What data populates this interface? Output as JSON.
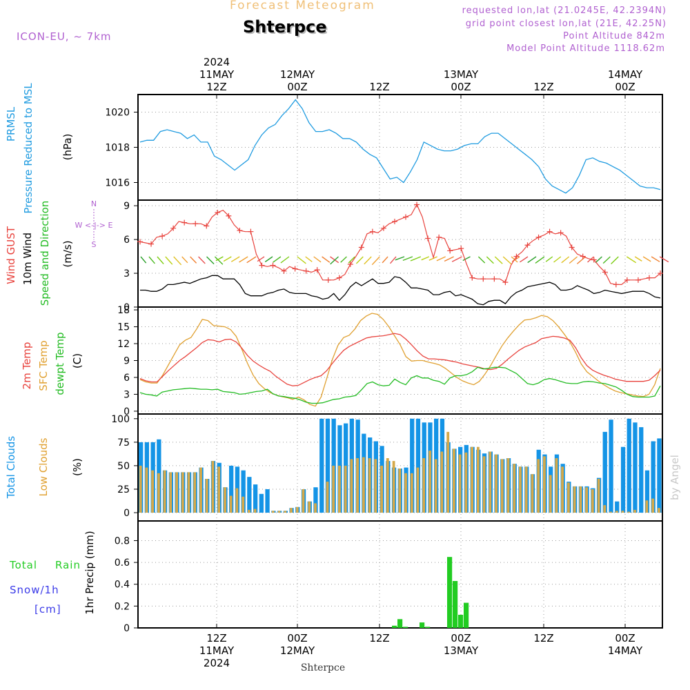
{
  "header": {
    "title": "Forecast Meteogram",
    "location": "Shterpce",
    "model": "ICON-EU, ~ 7km",
    "requested": "requested lon,lat (21.0245E, 42.2394N)",
    "grid_point": "grid point closest lon,lat (21E, 42.25N)",
    "point_altitude": "Point Altitude 842m",
    "model_altitude": "Model Point Altitude 1118.62m",
    "footer_location": "Shterpce",
    "credit": "by Angel"
  },
  "colors": {
    "pressure": "#1f9be0",
    "gust": "#e8423c",
    "wind": "#000000",
    "t2m": "#e8423c",
    "sfc": "#e0a030",
    "dewpt": "#22bb22",
    "total_cloud": "#1494e6",
    "low_cloud": "#d4a94a",
    "rain": "#22cc22",
    "snow": "#3a3ae8",
    "header_purple": "#b060d0",
    "title_orange": "#f0c078"
  },
  "chart_data": [
    {
      "type": "line",
      "panel": "pressure",
      "ylabels": [
        "PRMSL",
        "Pressure Reduced to MSL",
        "(hPa)"
      ],
      "ylim": [
        1015,
        1021
      ],
      "yticks": [
        1016,
        1018,
        1020
      ],
      "grid": true,
      "series": [
        {
          "name": "PRMSL",
          "values": [
            1018.3,
            1018.4,
            1018.4,
            1018.9,
            1019.0,
            1018.9,
            1018.8,
            1018.5,
            1018.7,
            1018.3,
            1018.3,
            1017.5,
            1017.3,
            1017.0,
            1016.7,
            1017.0,
            1017.3,
            1018.1,
            1018.7,
            1019.1,
            1019.3,
            1019.8,
            1020.2,
            1020.7,
            1020.2,
            1019.4,
            1018.9,
            1018.9,
            1019.0,
            1018.8,
            1018.5,
            1018.5,
            1018.3,
            1017.9,
            1017.6,
            1017.4,
            1016.8,
            1016.2,
            1016.3,
            1016.0,
            1016.6,
            1017.3,
            1018.3,
            1018.1,
            1017.9,
            1017.8,
            1017.8,
            1017.9,
            1018.1,
            1018.2,
            1018.2,
            1018.6,
            1018.8,
            1018.8,
            1018.5,
            1018.2,
            1017.9,
            1017.6,
            1017.3,
            1016.9,
            1016.2,
            1015.8,
            1015.6,
            1015.4,
            1015.7,
            1016.4,
            1017.3,
            1017.4,
            1017.2,
            1017.1,
            1016.9,
            1016.7,
            1016.4,
            1016.1,
            1015.8,
            1015.7,
            1015.7,
            1015.6
          ]
        }
      ]
    },
    {
      "type": "line",
      "panel": "wind",
      "ylabels": [
        "Wind GUST",
        "10m Wind",
        "Speed and Direction",
        "(m/s)"
      ],
      "compass": [
        "N",
        "W <-|-> E",
        "S"
      ],
      "ylim": [
        0,
        9.5
      ],
      "yticks": [
        0,
        3,
        6,
        9
      ],
      "grid": true,
      "series": [
        {
          "name": "Wind GUST",
          "values": [
            5.8,
            5.7,
            5.6,
            6.2,
            6.3,
            6.5,
            7.0,
            7.6,
            7.5,
            7.4,
            7.4,
            7.4,
            7.2,
            8.0,
            8.4,
            8.6,
            8.1,
            7.3,
            6.8,
            6.7,
            6.7,
            4.7,
            3.7,
            3.6,
            3.7,
            3.5,
            3.2,
            3.6,
            3.4,
            3.3,
            3.2,
            3.1,
            3.3,
            2.4,
            2.4,
            2.4,
            2.6,
            2.9,
            3.8,
            4.5,
            5.3,
            6.5,
            6.7,
            6.6,
            7.0,
            7.4,
            7.6,
            7.8,
            8.0,
            8.2,
            9.1,
            8.0,
            6.1,
            4.4,
            6.2,
            6.1,
            5.0,
            5.1,
            5.2,
            3.8,
            2.6,
            2.5,
            2.5,
            2.5,
            2.5,
            2.5,
            2.2,
            3.7,
            4.5,
            4.9,
            5.5,
            5.9,
            6.2,
            6.4,
            6.7,
            6.5,
            6.6,
            6.3,
            5.3,
            4.7,
            4.5,
            4.3,
            4.2,
            3.6,
            3.1,
            2.1,
            2.0,
            2.0,
            2.4,
            2.4,
            2.4,
            2.5,
            2.6,
            2.6,
            3.0
          ]
        },
        {
          "name": "10m Wind",
          "values": [
            1.5,
            1.5,
            1.4,
            1.4,
            1.6,
            2.0,
            2.0,
            2.1,
            2.2,
            2.1,
            2.3,
            2.5,
            2.6,
            2.8,
            2.8,
            2.5,
            2.5,
            2.5,
            2.0,
            1.2,
            1.0,
            1.0,
            1.0,
            1.2,
            1.3,
            1.5,
            1.6,
            1.3,
            1.2,
            1.2,
            1.2,
            1.0,
            0.9,
            0.7,
            0.8,
            1.2,
            0.6,
            1.1,
            1.8,
            2.2,
            1.9,
            2.2,
            2.5,
            2.1,
            2.1,
            2.2,
            2.7,
            2.6,
            2.2,
            1.7,
            1.7,
            1.6,
            1.5,
            1.1,
            1.1,
            1.3,
            1.4,
            1.0,
            1.1,
            0.9,
            0.7,
            0.3,
            0.2,
            0.5,
            0.6,
            0.6,
            0.3,
            0.9,
            1.3,
            1.5,
            1.8,
            1.9,
            2.0,
            2.1,
            2.2,
            2.0,
            1.5,
            1.5,
            1.6,
            1.9,
            1.7,
            1.5,
            1.2,
            1.3,
            1.5,
            1.4,
            1.3,
            1.2,
            1.3,
            1.4,
            1.4,
            1.4,
            1.2,
            0.9,
            0.8
          ]
        }
      ]
    },
    {
      "type": "line",
      "panel": "temperature",
      "ylabels": [
        "2m Temp",
        "SFC Temp",
        "dewpt Temp",
        "(C)"
      ],
      "ylim": [
        -0.5,
        18.5
      ],
      "yticks": [
        0,
        3,
        6,
        9,
        12,
        15,
        18
      ],
      "grid": true,
      "series": [
        {
          "name": "2m Temp",
          "values": [
            5.8,
            5.4,
            5.2,
            5.2,
            6.2,
            7.2,
            8.1,
            9.0,
            9.7,
            10.5,
            11.3,
            12.2,
            12.7,
            12.6,
            12.3,
            12.7,
            12.8,
            12.3,
            11.2,
            9.9,
            8.9,
            8.2,
            7.6,
            7.1,
            6.2,
            5.5,
            4.8,
            4.5,
            4.6,
            5.1,
            5.6,
            6.0,
            6.3,
            7.2,
            8.5,
            9.7,
            10.8,
            11.5,
            12.0,
            12.5,
            13.0,
            13.2,
            13.3,
            13.4,
            13.6,
            13.8,
            13.6,
            12.8,
            11.8,
            10.7,
            9.8,
            9.3,
            9.3,
            9.2,
            9.1,
            8.9,
            8.7,
            8.4,
            8.2,
            8.0,
            7.8,
            7.5,
            7.4,
            7.6,
            8.3,
            9.2,
            10.0,
            10.8,
            11.4,
            11.8,
            12.2,
            12.9,
            13.1,
            13.3,
            13.2,
            13.0,
            12.6,
            11.3,
            9.5,
            8.1,
            7.3,
            6.8,
            6.4,
            6.1,
            5.7,
            5.5,
            5.3,
            5.3,
            5.3,
            5.3,
            5.5,
            6.3,
            7.3
          ]
        },
        {
          "name": "SFC Temp",
          "values": [
            5.6,
            5.2,
            5.0,
            5.0,
            6.4,
            8.2,
            10.0,
            11.8,
            12.6,
            13.1,
            14.6,
            16.3,
            16.1,
            15.2,
            15.1,
            15.0,
            14.5,
            13.3,
            11.0,
            8.5,
            6.4,
            4.9,
            4.0,
            3.3,
            2.9,
            2.6,
            2.4,
            2.1,
            2.5,
            2.0,
            1.2,
            0.9,
            2.5,
            5.8,
            9.2,
            11.7,
            13.1,
            13.5,
            14.6,
            16.1,
            16.9,
            17.4,
            17.2,
            16.3,
            15.0,
            13.4,
            11.8,
            9.7,
            8.9,
            9.0,
            9.0,
            8.7,
            8.5,
            8.2,
            7.6,
            6.8,
            6.0,
            5.4,
            5.0,
            4.7,
            5.3,
            6.6,
            8.1,
            9.9,
            11.6,
            13.0,
            14.2,
            15.3,
            16.2,
            16.3,
            16.6,
            17.0,
            16.8,
            16.1,
            15.0,
            13.7,
            12.3,
            10.5,
            8.4,
            7.0,
            6.2,
            5.4,
            4.7,
            4.1,
            3.6,
            3.3,
            3.1,
            2.9,
            2.7,
            2.6,
            3.0,
            4.7,
            7.6
          ]
        },
        {
          "name": "dewpt Temp",
          "values": [
            3.3,
            3.0,
            2.9,
            2.7,
            3.4,
            3.6,
            3.8,
            3.9,
            4.0,
            4.1,
            4.0,
            3.9,
            3.9,
            3.8,
            3.9,
            3.5,
            3.4,
            3.3,
            3.0,
            3.1,
            3.3,
            3.5,
            3.6,
            3.9,
            3.1,
            2.7,
            2.6,
            2.4,
            2.3,
            2.0,
            1.6,
            1.4,
            1.4,
            1.5,
            1.8,
            2.1,
            2.2,
            2.5,
            2.6,
            2.8,
            3.8,
            4.9,
            5.2,
            4.7,
            4.5,
            4.6,
            5.7,
            5.1,
            4.7,
            5.9,
            6.3,
            5.9,
            5.9,
            5.5,
            5.3,
            4.8,
            5.9,
            6.3,
            6.3,
            6.5,
            7.0,
            7.8,
            7.5,
            7.6,
            7.8,
            7.8,
            7.7,
            7.2,
            6.7,
            5.8,
            4.9,
            4.7,
            5.0,
            5.6,
            5.8,
            5.6,
            5.3,
            5.0,
            4.9,
            4.9,
            5.2,
            5.3,
            5.2,
            5.0,
            4.9,
            4.6,
            4.3,
            3.7,
            3.0,
            2.6,
            2.5,
            2.5,
            2.5,
            2.7,
            4.5
          ]
        }
      ]
    },
    {
      "type": "bar",
      "panel": "clouds",
      "ylabels": [
        "Total Clouds",
        "Low Clouds",
        "(%)"
      ],
      "ylim": [
        0,
        105
      ],
      "yticks": [
        0,
        25,
        50,
        75,
        100
      ],
      "grid": true,
      "series": [
        {
          "name": "Total Clouds",
          "values": [
            75,
            75,
            75,
            78,
            45,
            43,
            43,
            43,
            43,
            43,
            48,
            36,
            55,
            53,
            27,
            50,
            49,
            45,
            38,
            30,
            20,
            25,
            2,
            2,
            2,
            5,
            6,
            25,
            12,
            27,
            100,
            100,
            100,
            93,
            95,
            100,
            99,
            84,
            80,
            76,
            71,
            55,
            48,
            47,
            48,
            100,
            100,
            96,
            96,
            100,
            100,
            75,
            68,
            70,
            72,
            70,
            67,
            63,
            65,
            62,
            57,
            58,
            52,
            49,
            49,
            41,
            67,
            62,
            49,
            62,
            52,
            33,
            28,
            28,
            28,
            26,
            37,
            86,
            99,
            12,
            70,
            100,
            96,
            91,
            45,
            76,
            79
          ]
        },
        {
          "name": "Low Clouds",
          "values": [
            50,
            48,
            45,
            42,
            45,
            43,
            43,
            43,
            43,
            43,
            48,
            36,
            55,
            49,
            27,
            18,
            26,
            17,
            3,
            4,
            0,
            0,
            2,
            2,
            2,
            5,
            6,
            25,
            12,
            10,
            0,
            33,
            50,
            50,
            50,
            57,
            58,
            59,
            58,
            57,
            50,
            58,
            55,
            47,
            42,
            42,
            48,
            58,
            66,
            57,
            65,
            86,
            68,
            62,
            64,
            70,
            70,
            60,
            65,
            62,
            57,
            58,
            52,
            49,
            49,
            41,
            57,
            60,
            40,
            58,
            49,
            32,
            28,
            28,
            27,
            25,
            36,
            8,
            1,
            2,
            2,
            1,
            3,
            0,
            13,
            15,
            5,
            10
          ]
        }
      ]
    },
    {
      "type": "bar",
      "panel": "precipitation",
      "ylabels": [
        "Total",
        "Rain",
        "Snow/1h",
        "[cm]",
        "1hr Precip (mm)"
      ],
      "ylim": [
        0,
        0.98
      ],
      "yticks": [
        0,
        0.2,
        0.4,
        0.6,
        0.8
      ],
      "ytick_labels": [
        "0",
        "0.2",
        "0.4",
        "0.6",
        "0.8"
      ],
      "grid": true,
      "bars": [
        {
          "i": 46,
          "v": 0.02
        },
        {
          "i": 47,
          "v": 0.08
        },
        {
          "i": 48,
          "v": 0.01
        },
        {
          "i": 51,
          "v": 0.05
        },
        {
          "i": 52,
          "v": 0.01
        },
        {
          "i": 56,
          "v": 0.65
        },
        {
          "i": 57,
          "v": 0.43
        },
        {
          "i": 58,
          "v": 0.12
        },
        {
          "i": 59,
          "v": 0.23
        }
      ]
    }
  ],
  "time_axis": {
    "top_labels": [
      {
        "lines": [
          "2024",
          "11MAY",
          "12Z"
        ]
      },
      {
        "lines": [
          "12MAY",
          "00Z"
        ]
      },
      {
        "lines": [
          "12Z"
        ]
      },
      {
        "lines": [
          "13MAY",
          "00Z"
        ]
      },
      {
        "lines": [
          "12Z"
        ]
      },
      {
        "lines": [
          "14MAY",
          "00Z"
        ]
      }
    ],
    "bottom_labels": [
      {
        "lines": [
          "12Z",
          "11MAY",
          "2024"
        ]
      },
      {
        "lines": [
          "00Z",
          "12MAY"
        ]
      },
      {
        "lines": [
          "12Z"
        ]
      },
      {
        "lines": [
          "00Z",
          "13MAY"
        ]
      },
      {
        "lines": [
          "12Z"
        ]
      },
      {
        "lines": [
          "00Z",
          "14MAY"
        ]
      }
    ]
  }
}
